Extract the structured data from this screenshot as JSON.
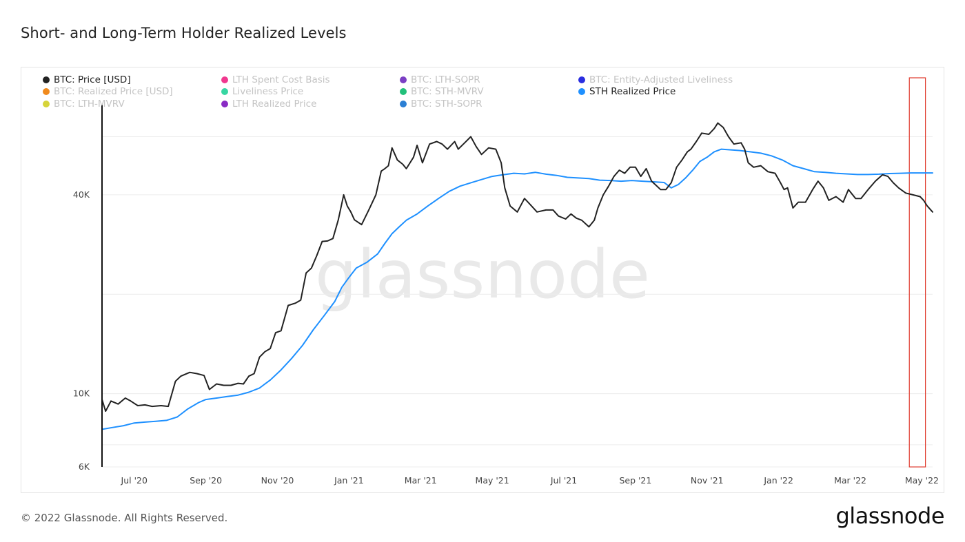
{
  "title": "Short- and Long-Term Holder Realized Levels",
  "footer": {
    "copyright": "© 2022 Glassnode. All Rights Reserved.",
    "logo": "glassnode"
  },
  "watermark": "glassnode",
  "legend": [
    {
      "label": "BTC: Price [USD]",
      "color": "#222222",
      "active": true
    },
    {
      "label": "LTH Spent Cost Basis",
      "color": "#f0388f",
      "active": false
    },
    {
      "label": "BTC: LTH-SOPR",
      "color": "#7b3fc4",
      "active": false
    },
    {
      "label": "BTC: Entity-Adjusted Liveliness",
      "color": "#2a2ee0",
      "active": false
    },
    {
      "label": "BTC: Realized Price [USD]",
      "color": "#f08a1d",
      "active": false
    },
    {
      "label": "Liveliness Price",
      "color": "#37d6a2",
      "active": false
    },
    {
      "label": "BTC: STH-MVRV",
      "color": "#22c07a",
      "active": false
    },
    {
      "label": "STH Realized Price",
      "color": "#1e90ff",
      "active": true
    },
    {
      "label": "BTC: LTH-MVRV",
      "color": "#d6d43a",
      "active": false
    },
    {
      "label": "LTH Realized Price",
      "color": "#8a2bc4",
      "active": false
    },
    {
      "label": "BTC: STH-SOPR",
      "color": "#2b7fd4",
      "active": false
    }
  ],
  "chart_data": {
    "type": "line",
    "title": "Short- and Long-Term Holder Realized Levels",
    "xlabel": "",
    "ylabel": "",
    "yscale": "log",
    "ylim": [
      6000,
      75000
    ],
    "y_ticks": [
      {
        "value": 6000,
        "label": "6K"
      },
      {
        "value": 10000,
        "label": "10K"
      },
      {
        "value": 40000,
        "label": "40K"
      }
    ],
    "x_ticks": [
      "Jul '20",
      "Sep '20",
      "Nov '20",
      "Jan '21",
      "Mar '21",
      "May '21",
      "Jul '21",
      "Sep '21",
      "Nov '21",
      "Jan '22",
      "Mar '22",
      "May '22"
    ],
    "x_tick_month_index": [
      1.0,
      3.0,
      5.0,
      7.0,
      9.0,
      11.0,
      13.0,
      15.0,
      17.0,
      19.0,
      21.0,
      23.0
    ],
    "x_range_month_index": [
      0.1,
      23.3
    ],
    "highlight_range_month_index": [
      22.65,
      23.1
    ],
    "series": [
      {
        "name": "BTC: Price [USD]",
        "color": "#222222",
        "points": [
          [
            0.1,
            9600
          ],
          [
            0.2,
            8850
          ],
          [
            0.35,
            9500
          ],
          [
            0.55,
            9300
          ],
          [
            0.75,
            9700
          ],
          [
            0.9,
            9500
          ],
          [
            1.1,
            9200
          ],
          [
            1.3,
            9250
          ],
          [
            1.5,
            9150
          ],
          [
            1.75,
            9200
          ],
          [
            1.95,
            9150
          ],
          [
            2.15,
            10900
          ],
          [
            2.3,
            11300
          ],
          [
            2.55,
            11600
          ],
          [
            2.75,
            11500
          ],
          [
            2.95,
            11350
          ],
          [
            3.1,
            10300
          ],
          [
            3.3,
            10700
          ],
          [
            3.5,
            10600
          ],
          [
            3.7,
            10600
          ],
          [
            3.9,
            10750
          ],
          [
            4.05,
            10700
          ],
          [
            4.2,
            11300
          ],
          [
            4.35,
            11500
          ],
          [
            4.5,
            12900
          ],
          [
            4.65,
            13400
          ],
          [
            4.8,
            13700
          ],
          [
            4.95,
            15300
          ],
          [
            5.1,
            15500
          ],
          [
            5.3,
            18500
          ],
          [
            5.5,
            18800
          ],
          [
            5.65,
            19200
          ],
          [
            5.8,
            23200
          ],
          [
            5.95,
            24000
          ],
          [
            6.1,
            26200
          ],
          [
            6.25,
            28900
          ],
          [
            6.4,
            29000
          ],
          [
            6.55,
            29500
          ],
          [
            6.7,
            33600
          ],
          [
            6.85,
            40000
          ],
          [
            6.95,
            37000
          ],
          [
            7.05,
            35500
          ],
          [
            7.15,
            33600
          ],
          [
            7.35,
            32500
          ],
          [
            7.55,
            36000
          ],
          [
            7.75,
            40000
          ],
          [
            7.9,
            47200
          ],
          [
            8.0,
            48000
          ],
          [
            8.1,
            49000
          ],
          [
            8.2,
            55500
          ],
          [
            8.35,
            51000
          ],
          [
            8.5,
            49500
          ],
          [
            8.6,
            48000
          ],
          [
            8.8,
            52000
          ],
          [
            8.9,
            56500
          ],
          [
            9.05,
            50000
          ],
          [
            9.25,
            57000
          ],
          [
            9.45,
            58000
          ],
          [
            9.6,
            57000
          ],
          [
            9.75,
            55000
          ],
          [
            9.95,
            58000
          ],
          [
            10.05,
            55000
          ],
          [
            10.25,
            57800
          ],
          [
            10.4,
            60000
          ],
          [
            10.55,
            56000
          ],
          [
            10.7,
            53000
          ],
          [
            10.9,
            55500
          ],
          [
            11.1,
            55000
          ],
          [
            11.25,
            50000
          ],
          [
            11.35,
            42000
          ],
          [
            11.5,
            37000
          ],
          [
            11.7,
            35500
          ],
          [
            11.9,
            39000
          ],
          [
            12.05,
            37500
          ],
          [
            12.25,
            35500
          ],
          [
            12.5,
            36000
          ],
          [
            12.7,
            36000
          ],
          [
            12.85,
            34500
          ],
          [
            13.05,
            33800
          ],
          [
            13.2,
            35000
          ],
          [
            13.35,
            34000
          ],
          [
            13.5,
            33500
          ],
          [
            13.7,
            32000
          ],
          [
            13.85,
            33500
          ],
          [
            13.95,
            36500
          ],
          [
            14.1,
            40000
          ],
          [
            14.25,
            42500
          ],
          [
            14.4,
            45500
          ],
          [
            14.55,
            47500
          ],
          [
            14.7,
            46500
          ],
          [
            14.85,
            48500
          ],
          [
            15.0,
            48500
          ],
          [
            15.15,
            45500
          ],
          [
            15.3,
            48000
          ],
          [
            15.45,
            44000
          ],
          [
            15.55,
            43000
          ],
          [
            15.7,
            41500
          ],
          [
            15.85,
            41500
          ],
          [
            16.0,
            43500
          ],
          [
            16.15,
            48500
          ],
          [
            16.3,
            51000
          ],
          [
            16.45,
            54000
          ],
          [
            16.55,
            55000
          ],
          [
            16.7,
            58000
          ],
          [
            16.85,
            61500
          ],
          [
            17.05,
            61000
          ],
          [
            17.2,
            63500
          ],
          [
            17.3,
            66000
          ],
          [
            17.45,
            64000
          ],
          [
            17.6,
            60000
          ],
          [
            17.75,
            57000
          ],
          [
            17.95,
            57500
          ],
          [
            18.05,
            55000
          ],
          [
            18.15,
            50000
          ],
          [
            18.3,
            48500
          ],
          [
            18.5,
            49000
          ],
          [
            18.7,
            47000
          ],
          [
            18.9,
            46500
          ],
          [
            19.05,
            43500
          ],
          [
            19.15,
            41500
          ],
          [
            19.25,
            42000
          ],
          [
            19.4,
            36500
          ],
          [
            19.55,
            38000
          ],
          [
            19.75,
            38000
          ],
          [
            19.95,
            41500
          ],
          [
            20.1,
            44000
          ],
          [
            20.25,
            42000
          ],
          [
            20.4,
            38500
          ],
          [
            20.6,
            39500
          ],
          [
            20.8,
            38000
          ],
          [
            20.95,
            41500
          ],
          [
            21.15,
            39000
          ],
          [
            21.3,
            39000
          ],
          [
            21.5,
            41500
          ],
          [
            21.7,
            44000
          ],
          [
            21.9,
            46000
          ],
          [
            22.05,
            45500
          ],
          [
            22.2,
            43500
          ],
          [
            22.35,
            42000
          ],
          [
            22.55,
            40500
          ],
          [
            22.75,
            40000
          ],
          [
            22.95,
            39500
          ],
          [
            23.05,
            38500
          ],
          [
            23.15,
            37000
          ],
          [
            23.25,
            36000
          ],
          [
            23.3,
            35500
          ]
        ]
      },
      {
        "name": "STH Realized Price",
        "color": "#1e90ff",
        "points": [
          [
            0.1,
            7800
          ],
          [
            0.4,
            7900
          ],
          [
            0.7,
            8000
          ],
          [
            1.0,
            8150
          ],
          [
            1.3,
            8200
          ],
          [
            1.6,
            8250
          ],
          [
            1.9,
            8300
          ],
          [
            2.2,
            8500
          ],
          [
            2.5,
            9000
          ],
          [
            2.8,
            9400
          ],
          [
            3.0,
            9600
          ],
          [
            3.3,
            9700
          ],
          [
            3.6,
            9800
          ],
          [
            3.9,
            9900
          ],
          [
            4.2,
            10100
          ],
          [
            4.5,
            10400
          ],
          [
            4.8,
            11000
          ],
          [
            5.1,
            11800
          ],
          [
            5.4,
            12800
          ],
          [
            5.7,
            14000
          ],
          [
            6.0,
            15600
          ],
          [
            6.3,
            17200
          ],
          [
            6.6,
            19000
          ],
          [
            6.8,
            21000
          ],
          [
            7.0,
            22500
          ],
          [
            7.2,
            24000
          ],
          [
            7.5,
            25000
          ],
          [
            7.8,
            26500
          ],
          [
            8.0,
            28500
          ],
          [
            8.2,
            30500
          ],
          [
            8.4,
            32000
          ],
          [
            8.6,
            33500
          ],
          [
            8.9,
            35000
          ],
          [
            9.2,
            37000
          ],
          [
            9.5,
            39000
          ],
          [
            9.8,
            41000
          ],
          [
            10.1,
            42500
          ],
          [
            10.4,
            43500
          ],
          [
            10.7,
            44500
          ],
          [
            11.0,
            45500
          ],
          [
            11.3,
            46000
          ],
          [
            11.6,
            46500
          ],
          [
            11.9,
            46300
          ],
          [
            12.2,
            46800
          ],
          [
            12.5,
            46200
          ],
          [
            12.8,
            45800
          ],
          [
            13.1,
            45200
          ],
          [
            13.4,
            45000
          ],
          [
            13.7,
            44800
          ],
          [
            14.0,
            44300
          ],
          [
            14.3,
            44200
          ],
          [
            14.6,
            44000
          ],
          [
            14.9,
            44200
          ],
          [
            15.2,
            44000
          ],
          [
            15.5,
            43800
          ],
          [
            15.8,
            43600
          ],
          [
            16.0,
            42000
          ],
          [
            16.2,
            43000
          ],
          [
            16.4,
            45000
          ],
          [
            16.6,
            47500
          ],
          [
            16.8,
            50500
          ],
          [
            17.0,
            52000
          ],
          [
            17.2,
            54000
          ],
          [
            17.4,
            55000
          ],
          [
            17.6,
            54800
          ],
          [
            17.9,
            54500
          ],
          [
            18.2,
            54000
          ],
          [
            18.5,
            53500
          ],
          [
            18.8,
            52500
          ],
          [
            19.1,
            51000
          ],
          [
            19.4,
            49000
          ],
          [
            19.7,
            48000
          ],
          [
            20.0,
            47000
          ],
          [
            20.3,
            46800
          ],
          [
            20.6,
            46500
          ],
          [
            20.9,
            46300
          ],
          [
            21.2,
            46100
          ],
          [
            21.5,
            46100
          ],
          [
            21.8,
            46200
          ],
          [
            22.1,
            46400
          ],
          [
            22.4,
            46500
          ],
          [
            22.7,
            46600
          ],
          [
            23.0,
            46600
          ],
          [
            23.3,
            46600
          ]
        ]
      }
    ]
  }
}
